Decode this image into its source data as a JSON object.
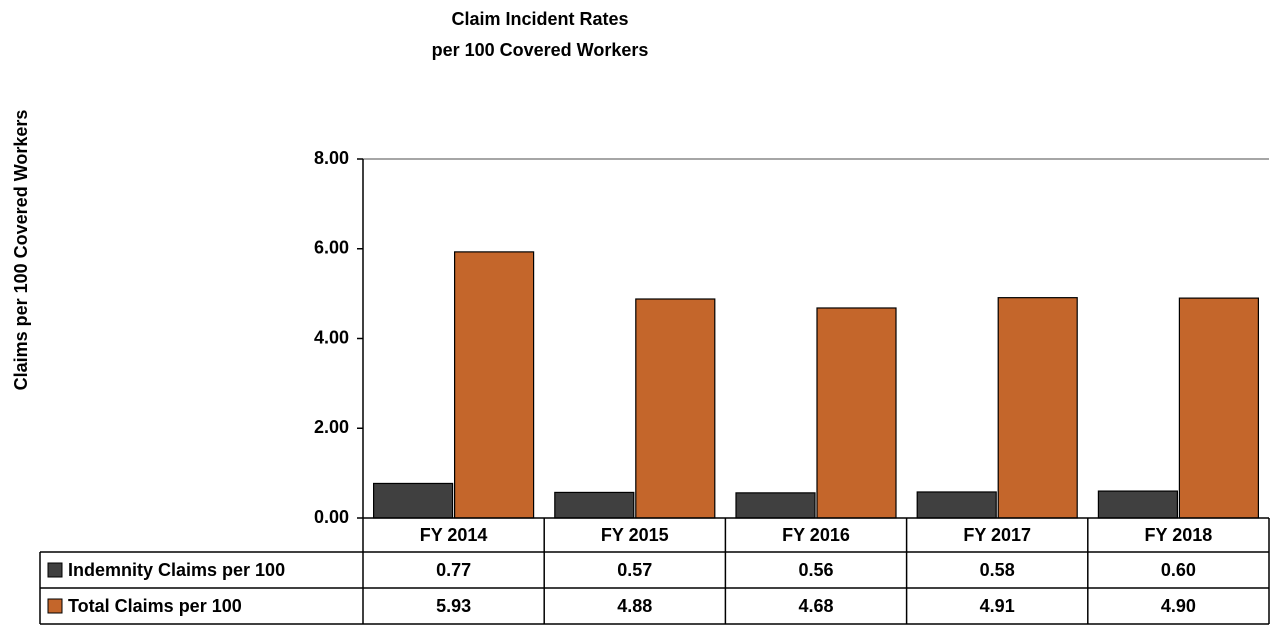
{
  "chart_data": {
    "type": "bar",
    "title": [
      "Claim Incident Rates",
      "per 100 Covered Workers"
    ],
    "y_label": "Claims per 100 Covered Workers",
    "categories": [
      "FY 2014",
      "FY 2015",
      "FY 2016",
      "FY 2017",
      "FY 2018"
    ],
    "series": [
      {
        "name": "Indemnity Claims per 100",
        "color": "#404040",
        "values": [
          0.77,
          0.57,
          0.56,
          0.58,
          0.6
        ],
        "value_labels": [
          "0.77",
          "0.57",
          "0.56",
          "0.58",
          "0.60"
        ]
      },
      {
        "name": "Total Claims per 100",
        "color": "#c4662b",
        "values": [
          5.93,
          4.88,
          4.68,
          4.91,
          4.9
        ],
        "value_labels": [
          "5.93",
          "4.88",
          "4.68",
          "4.91",
          "4.90"
        ]
      }
    ],
    "ylim": [
      0,
      8
    ],
    "yticks": [
      {
        "value": 0,
        "label": "0.00"
      },
      {
        "value": 2,
        "label": "2.00"
      },
      {
        "value": 4,
        "label": "4.00"
      },
      {
        "value": 6,
        "label": "6.00"
      },
      {
        "value": 8,
        "label": "8.00"
      }
    ],
    "grid": false
  }
}
